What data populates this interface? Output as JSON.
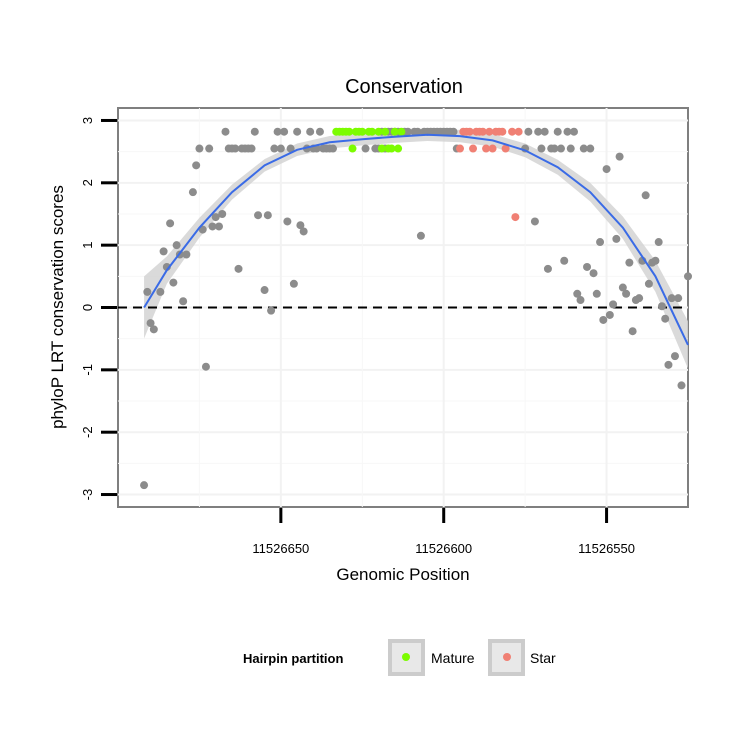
{
  "chart_data": {
    "type": "scatter",
    "title": "Conservation",
    "xlabel": "Genomic Position",
    "ylabel": "phyloP LRT conservation scores",
    "x_reversed": true,
    "xlim": [
      11526700,
      11526525
    ],
    "ylim": [
      -3.2,
      3.2
    ],
    "x_ticks": [
      11526650,
      11526600,
      11526550
    ],
    "y_ticks": [
      -3,
      -2,
      -1,
      0,
      1,
      2,
      3
    ],
    "reference_line": {
      "y": 0,
      "style": "dashed"
    },
    "legend": {
      "title": "Hairpin partition",
      "position": "bottom",
      "entries": [
        {
          "label": "Mature",
          "color": "#7cfc00"
        },
        {
          "label": "Star",
          "color": "#f08074"
        }
      ]
    },
    "colors": {
      "other": "#8c8c8c",
      "mature": "#7cfc00",
      "star": "#f08074",
      "smooth": "#3a6be6",
      "band": "#d4d4d4"
    },
    "points_other": [
      [
        11526692,
        -2.85
      ],
      [
        11526691,
        0.25
      ],
      [
        11526690,
        -0.25
      ],
      [
        11526689,
        -0.35
      ],
      [
        11526687,
        0.25
      ],
      [
        11526686,
        0.9
      ],
      [
        11526685,
        0.65
      ],
      [
        11526684,
        1.35
      ],
      [
        11526683,
        0.4
      ],
      [
        11526682,
        1.0
      ],
      [
        11526681,
        0.85
      ],
      [
        11526680,
        0.1
      ],
      [
        11526679,
        0.85
      ],
      [
        11526677,
        1.85
      ],
      [
        11526676,
        2.28
      ],
      [
        11526675,
        2.55
      ],
      [
        11526674,
        1.25
      ],
      [
        11526673,
        -0.95
      ],
      [
        11526672,
        2.55
      ],
      [
        11526671,
        1.3
      ],
      [
        11526670,
        1.45
      ],
      [
        11526669,
        1.3
      ],
      [
        11526668,
        1.5
      ],
      [
        11526667,
        2.82
      ],
      [
        11526666,
        2.55
      ],
      [
        11526665,
        2.55
      ],
      [
        11526664,
        2.55
      ],
      [
        11526663,
        0.62
      ],
      [
        11526662,
        2.55
      ],
      [
        11526661,
        2.55
      ],
      [
        11526660,
        2.55
      ],
      [
        11526659,
        2.55
      ],
      [
        11526658,
        2.82
      ],
      [
        11526657,
        1.48
      ],
      [
        11526655,
        0.28
      ],
      [
        11526654,
        1.48
      ],
      [
        11526653,
        -0.05
      ],
      [
        11526652,
        2.55
      ],
      [
        11526651,
        2.82
      ],
      [
        11526650,
        2.55
      ],
      [
        11526649,
        2.82
      ],
      [
        11526648,
        1.38
      ],
      [
        11526647,
        2.55
      ],
      [
        11526646,
        0.38
      ],
      [
        11526645,
        2.82
      ],
      [
        11526644,
        1.32
      ],
      [
        11526643,
        1.22
      ],
      [
        11526642,
        2.55
      ],
      [
        11526641,
        2.82
      ],
      [
        11526640,
        2.55
      ],
      [
        11526639,
        2.55
      ],
      [
        11526638,
        2.82
      ],
      [
        11526637,
        2.55
      ],
      [
        11526636,
        2.55
      ],
      [
        11526635,
        2.55
      ],
      [
        11526634,
        2.55
      ],
      [
        11526624,
        2.55
      ],
      [
        11526621,
        2.55
      ],
      [
        11526620,
        2.55
      ],
      [
        11526619,
        2.82
      ],
      [
        11526618,
        2.55
      ],
      [
        11526617,
        2.82
      ],
      [
        11526616,
        2.82
      ],
      [
        11526615,
        2.82
      ],
      [
        11526614,
        2.82
      ],
      [
        11526612,
        2.82
      ],
      [
        11526611,
        2.82
      ],
      [
        11526609,
        2.82
      ],
      [
        11526608,
        2.82
      ],
      [
        11526607,
        1.15
      ],
      [
        11526606,
        2.82
      ],
      [
        11526605,
        2.82
      ],
      [
        11526604,
        2.82
      ],
      [
        11526603,
        2.82
      ],
      [
        11526602,
        2.82
      ],
      [
        11526601,
        2.82
      ],
      [
        11526600,
        2.82
      ],
      [
        11526599,
        2.82
      ],
      [
        11526598,
        2.82
      ],
      [
        11526597,
        2.82
      ],
      [
        11526596,
        2.55
      ],
      [
        11526575,
        2.55
      ],
      [
        11526574,
        2.82
      ],
      [
        11526572,
        1.38
      ],
      [
        11526571,
        2.82
      ],
      [
        11526570,
        2.55
      ],
      [
        11526569,
        2.82
      ],
      [
        11526568,
        0.62
      ],
      [
        11526567,
        2.55
      ],
      [
        11526566,
        2.55
      ],
      [
        11526565,
        2.82
      ],
      [
        11526564,
        2.55
      ],
      [
        11526563,
        0.75
      ],
      [
        11526562,
        2.82
      ],
      [
        11526561,
        2.55
      ],
      [
        11526560,
        2.82
      ],
      [
        11526559,
        0.22
      ],
      [
        11526558,
        0.12
      ],
      [
        11526557,
        2.55
      ],
      [
        11526556,
        0.65
      ],
      [
        11526555,
        2.55
      ],
      [
        11526554,
        0.55
      ],
      [
        11526553,
        0.22
      ],
      [
        11526552,
        1.05
      ],
      [
        11526551,
        -0.2
      ],
      [
        11526550,
        2.22
      ],
      [
        11526549,
        -0.12
      ],
      [
        11526548,
        0.05
      ],
      [
        11526547,
        1.1
      ],
      [
        11526546,
        2.42
      ],
      [
        11526545,
        0.32
      ],
      [
        11526544,
        0.22
      ],
      [
        11526543,
        0.72
      ],
      [
        11526542,
        -0.38
      ],
      [
        11526541,
        0.12
      ],
      [
        11526540,
        0.15
      ],
      [
        11526539,
        0.75
      ],
      [
        11526538,
        1.8
      ],
      [
        11526537,
        0.38
      ],
      [
        11526536,
        0.72
      ],
      [
        11526535,
        0.75
      ],
      [
        11526534,
        1.05
      ],
      [
        11526533,
        0.02
      ],
      [
        11526532,
        -0.18
      ],
      [
        11526531,
        -0.92
      ],
      [
        11526530,
        0.15
      ],
      [
        11526529,
        -0.78
      ],
      [
        11526528,
        0.15
      ],
      [
        11526527,
        -1.25
      ],
      [
        11526525,
        0.5
      ]
    ],
    "points_mature": [
      [
        11526633,
        2.82
      ],
      [
        11526632,
        2.82
      ],
      [
        11526631,
        2.82
      ],
      [
        11526630,
        2.82
      ],
      [
        11526629,
        2.82
      ],
      [
        11526628,
        2.55
      ],
      [
        11526627,
        2.82
      ],
      [
        11526626,
        2.82
      ],
      [
        11526625,
        2.82
      ],
      [
        11526623,
        2.82
      ],
      [
        11526622,
        2.82
      ],
      [
        11526620,
        2.82
      ],
      [
        11526619,
        2.55
      ],
      [
        11526618,
        2.82
      ],
      [
        11526617,
        2.55
      ],
      [
        11526616,
        2.55
      ],
      [
        11526615,
        2.82
      ],
      [
        11526614,
        2.55
      ],
      [
        11526613,
        2.82
      ]
    ],
    "points_star": [
      [
        11526595,
        2.55
      ],
      [
        11526594,
        2.82
      ],
      [
        11526593,
        2.82
      ],
      [
        11526592,
        2.82
      ],
      [
        11526591,
        2.55
      ],
      [
        11526590,
        2.82
      ],
      [
        11526589,
        2.82
      ],
      [
        11526588,
        2.82
      ],
      [
        11526587,
        2.55
      ],
      [
        11526586,
        2.82
      ],
      [
        11526585,
        2.55
      ],
      [
        11526584,
        2.82
      ],
      [
        11526583,
        2.82
      ],
      [
        11526582,
        2.82
      ],
      [
        11526581,
        2.55
      ],
      [
        11526579,
        2.82
      ],
      [
        11526578,
        1.45
      ],
      [
        11526577,
        2.82
      ]
    ],
    "smooth_curve": [
      [
        11526692,
        0.0
      ],
      [
        11526685,
        0.6
      ],
      [
        11526675,
        1.28
      ],
      [
        11526665,
        1.85
      ],
      [
        11526655,
        2.28
      ],
      [
        11526645,
        2.53
      ],
      [
        11526635,
        2.65
      ],
      [
        11526625,
        2.7
      ],
      [
        11526615,
        2.74
      ],
      [
        11526605,
        2.77
      ],
      [
        11526595,
        2.75
      ],
      [
        11526585,
        2.68
      ],
      [
        11526575,
        2.52
      ],
      [
        11526565,
        2.25
      ],
      [
        11526555,
        1.85
      ],
      [
        11526545,
        1.28
      ],
      [
        11526535,
        0.5
      ],
      [
        11526525,
        -0.6
      ]
    ],
    "confidence_halfwidth": [
      [
        11526692,
        0.5
      ],
      [
        11526685,
        0.22
      ],
      [
        11526675,
        0.16
      ],
      [
        11526665,
        0.12
      ],
      [
        11526655,
        0.1
      ],
      [
        11526645,
        0.1
      ],
      [
        11526635,
        0.1
      ],
      [
        11526625,
        0.1
      ],
      [
        11526615,
        0.1
      ],
      [
        11526605,
        0.1
      ],
      [
        11526595,
        0.1
      ],
      [
        11526585,
        0.1
      ],
      [
        11526575,
        0.11
      ],
      [
        11526565,
        0.12
      ],
      [
        11526555,
        0.15
      ],
      [
        11526545,
        0.18
      ],
      [
        11526535,
        0.25
      ],
      [
        11526525,
        0.38
      ]
    ]
  }
}
